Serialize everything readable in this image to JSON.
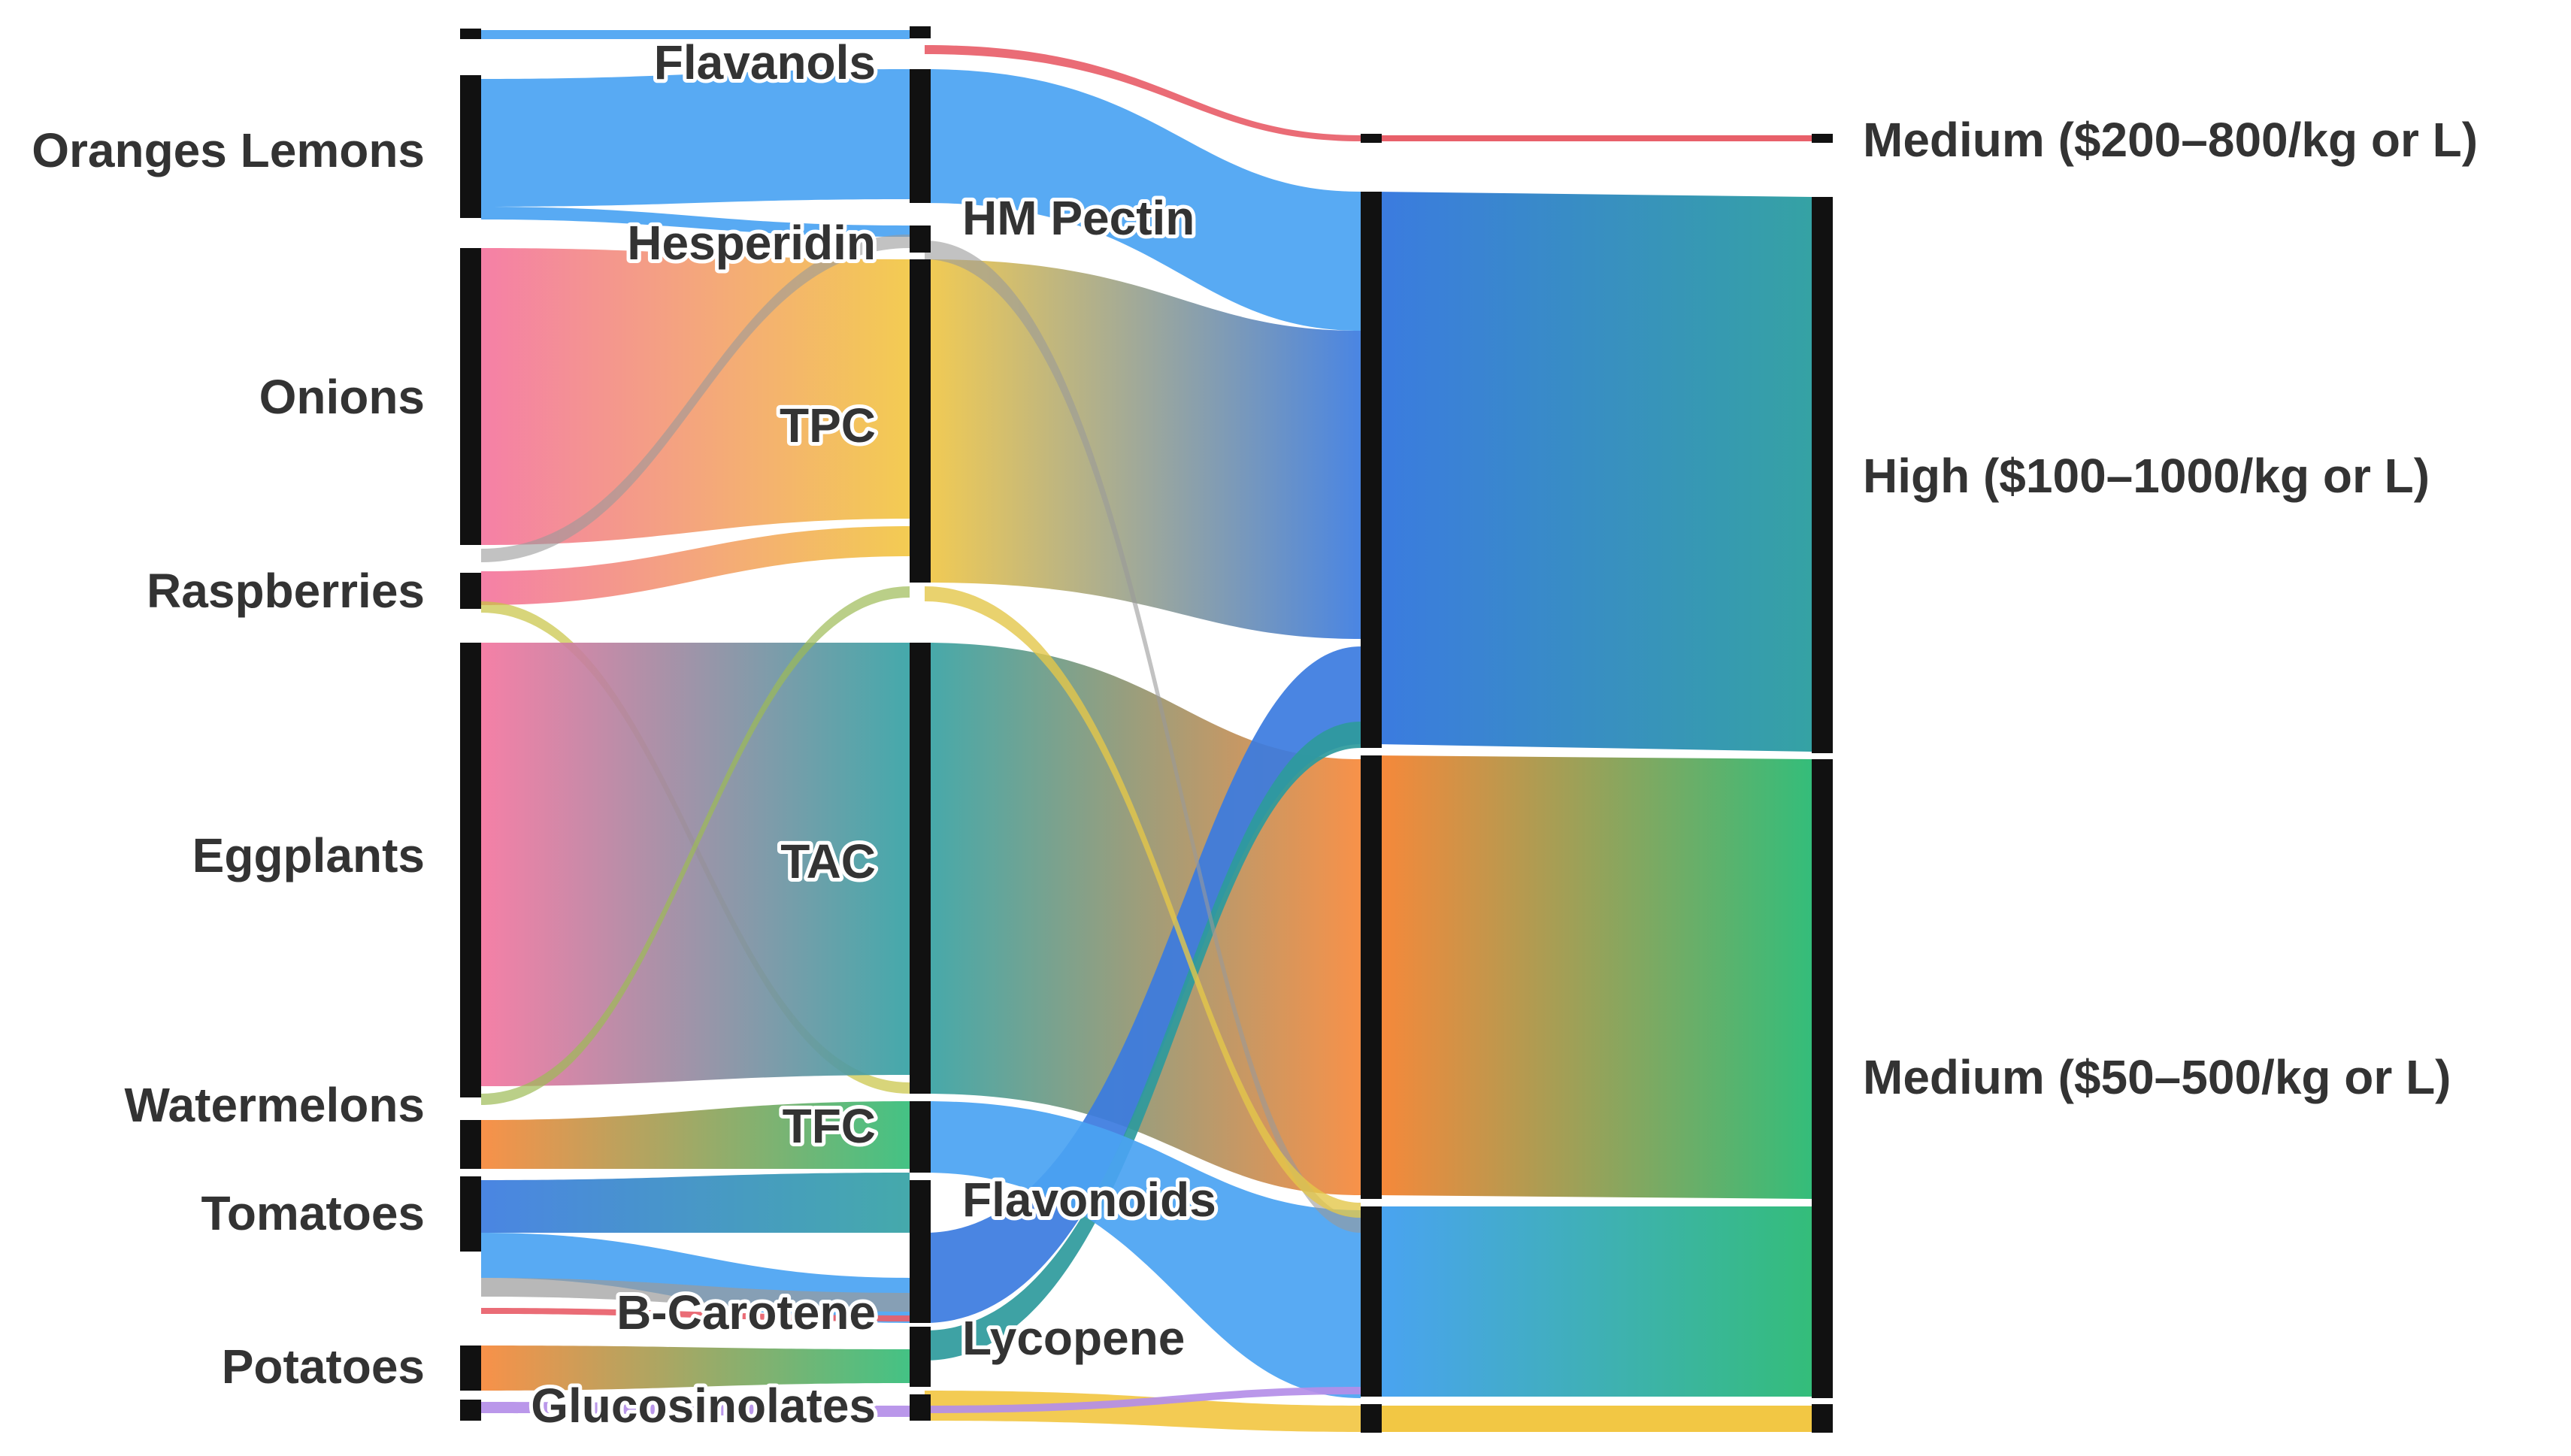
{
  "nodes": [
    {
      "id": "oranges_lemons",
      "label": "Oranges Lemons",
      "stage": 0
    },
    {
      "id": "onions",
      "label": "Onions",
      "stage": 0
    },
    {
      "id": "raspberries",
      "label": "Raspberries",
      "stage": 0
    },
    {
      "id": "eggplants",
      "label": "Eggplants",
      "stage": 0
    },
    {
      "id": "watermelons",
      "label": "Watermelons",
      "stage": 0
    },
    {
      "id": "tomatoes",
      "label": "Tomatoes",
      "stage": 0
    },
    {
      "id": "potatoes",
      "label": "Potatoes",
      "stage": 0
    },
    {
      "id": "flavanols",
      "label": "Flavanols",
      "stage": 1
    },
    {
      "id": "hesperidin",
      "label": "Hesperidin",
      "stage": 1
    },
    {
      "id": "tpc",
      "label": "TPC",
      "stage": 1
    },
    {
      "id": "tac",
      "label": "TAC",
      "stage": 1
    },
    {
      "id": "tfc",
      "label": "TFC",
      "stage": 1
    },
    {
      "id": "b_carotene",
      "label": "B-Carotene",
      "stage": 1
    },
    {
      "id": "glucosinolates",
      "label": "Glucosinolates",
      "stage": 1
    },
    {
      "id": "hm_pectin",
      "label": "HM Pectin",
      "stage": 2
    },
    {
      "id": "flavonoids",
      "label": "Flavonoids",
      "stage": 2
    },
    {
      "id": "lycopene",
      "label": "Lycopene",
      "stage": 2
    },
    {
      "id": "medium_200_800",
      "label": "Medium ($200–800/kg or L)",
      "stage": 4
    },
    {
      "id": "high_100_1000",
      "label": "High ($100–1000/kg or L)",
      "stage": 4
    },
    {
      "id": "medium_50_500",
      "label": "Medium ($50–500/kg or L)",
      "stage": 4
    }
  ],
  "colors": {
    "blue": "#4aa3f2",
    "pink": "#f4759f",
    "yellow": "#f2c744",
    "teal": "#35a2a4",
    "orange": "#f7883a",
    "green": "#34bd7a",
    "royal": "#3b7be0",
    "gray": "#9a9a9a",
    "purple": "#b48ee8",
    "red": "#e8606a",
    "node": "#111111",
    "label": "#333333"
  }
}
